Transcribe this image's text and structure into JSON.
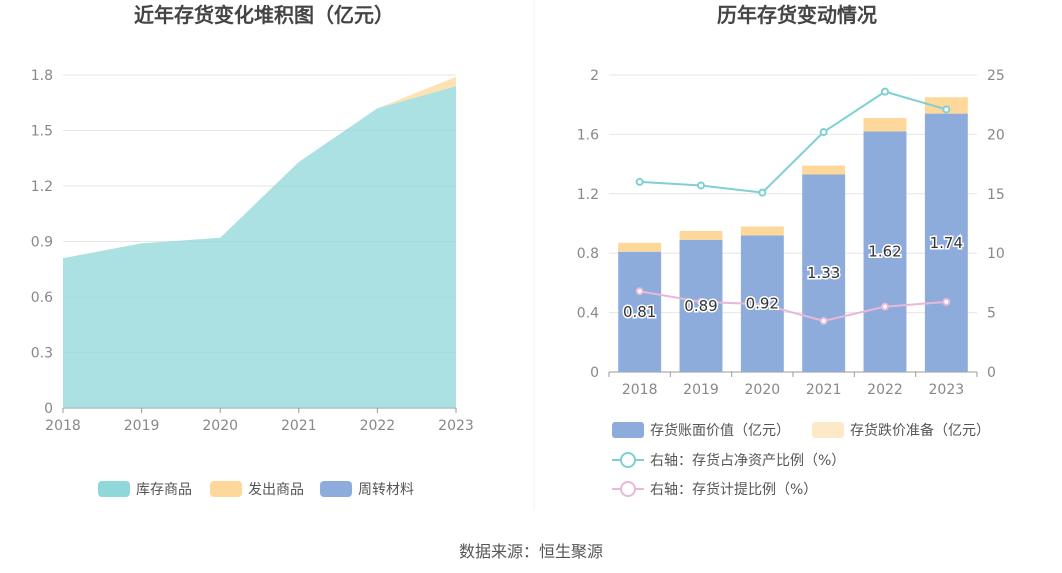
{
  "source": "数据来源：恒生聚源",
  "colors": {
    "inventory_goods": "#8fd7d8",
    "shipped_goods": "#fdd89a",
    "turnover_materials": "#8dacdb",
    "book_value": "#8dacdb",
    "impairment": "#fde8c7",
    "ratio_net_assets": "#7fd0d4",
    "provision_ratio": "#e7b8d8"
  },
  "chart_data": [
    {
      "type": "area",
      "title": "近年存货变化堆积图（亿元）",
      "x": [
        "2018",
        "2019",
        "2020",
        "2021",
        "2022",
        "2023"
      ],
      "ylim": [
        0,
        1.8
      ],
      "yticks": [
        "0",
        "0.3",
        "0.6",
        "0.9",
        "1.2",
        "1.5",
        "1.8"
      ],
      "grid": true,
      "legend_position": "bottom",
      "series": [
        {
          "name": "库存商品",
          "values": [
            0.81,
            0.89,
            0.92,
            1.33,
            1.62,
            1.74
          ]
        },
        {
          "name": "发出商品",
          "values": [
            0,
            0,
            0,
            0,
            0,
            0.05
          ]
        },
        {
          "name": "周转材料",
          "values": [
            0,
            0,
            0,
            0,
            0,
            0
          ]
        }
      ]
    },
    {
      "type": "bar",
      "title": "历年存货变动情况",
      "categories": [
        "2018",
        "2019",
        "2020",
        "2021",
        "2022",
        "2023"
      ],
      "ylim": [
        0,
        2
      ],
      "yticks": [
        "0",
        "0.4",
        "0.8",
        "1.2",
        "1.6",
        "2"
      ],
      "y2lim": [
        0,
        25
      ],
      "y2ticks": [
        "0",
        "5",
        "10",
        "15",
        "20",
        "25"
      ],
      "grid": true,
      "legend_position": "bottom",
      "bars": [
        {
          "name": "存货账面价值（亿元）",
          "values": [
            0.81,
            0.89,
            0.92,
            1.33,
            1.62,
            1.74
          ],
          "labels": [
            "0.81",
            "0.89",
            "0.92",
            "1.33",
            "1.62",
            "1.74"
          ]
        },
        {
          "name": "存货跌价准备（亿元）",
          "values": [
            0.06,
            0.06,
            0.06,
            0.06,
            0.09,
            0.11
          ]
        }
      ],
      "lines": [
        {
          "name": "右轴：存货占净资产比例（%）",
          "values": [
            16.0,
            15.7,
            15.1,
            20.2,
            23.6,
            22.1
          ]
        },
        {
          "name": "右轴：存货计提比例（%）",
          "values": [
            6.8,
            5.9,
            5.7,
            4.3,
            5.5,
            5.9
          ]
        }
      ]
    }
  ]
}
